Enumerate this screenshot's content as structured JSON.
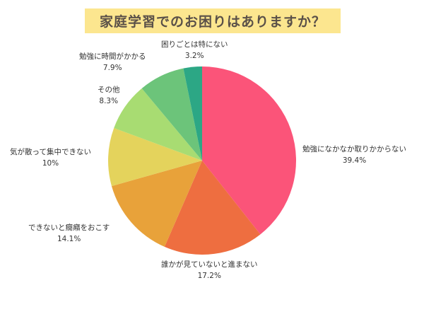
{
  "chart_data": {
    "type": "pie",
    "title": "家庭学習でのお困りはありますか？",
    "categories": [
      "勉強になかなか取りかからない",
      "誰かが見ていないと進まない",
      "できないと癇癪をおこす",
      "気が散って集中できない",
      "その他",
      "勉強に時間がかかる",
      "困りごとは特にない"
    ],
    "values": [
      39.4,
      17.2,
      14.1,
      10,
      8.3,
      7.9,
      3.2
    ],
    "labels": [
      "39.4%",
      "17.2%",
      "14.1%",
      "10%",
      "8.3%",
      "7.9%",
      "3.2%"
    ],
    "colors": [
      "#fb5479",
      "#ee6e40",
      "#e8a23a",
      "#e4d35c",
      "#a8dc72",
      "#6cc47a",
      "#2ca785"
    ],
    "start_angle": "12 o'clock, clockwise",
    "legend": "none (direct labels)"
  },
  "title": "家庭学習でのお困りはありますか？",
  "slices": [
    {
      "name": "勉強になかなか取りかからない",
      "pct": "39.4%"
    },
    {
      "name": "誰かが見ていないと進まない",
      "pct": "17.2%"
    },
    {
      "name": "できないと癇癪をおこす",
      "pct": "14.1%"
    },
    {
      "name": "気が散って集中できない",
      "pct": "10%"
    },
    {
      "name": "その他",
      "pct": "8.3%"
    },
    {
      "name": "勉強に時間がかかる",
      "pct": "7.9%"
    },
    {
      "name": "困りごとは特にない",
      "pct": "3.2%"
    }
  ]
}
